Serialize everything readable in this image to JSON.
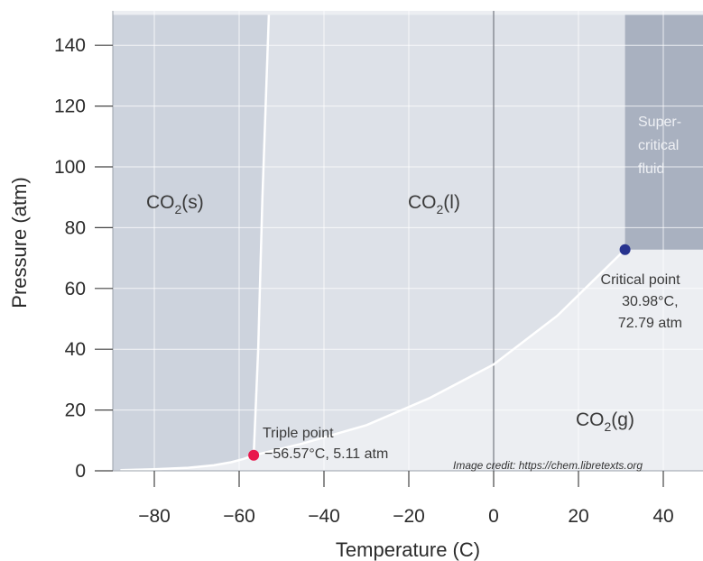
{
  "chart_data": {
    "type": "line",
    "title": "",
    "xlabel": "Temperature (C)",
    "ylabel": "Pressure (atm)",
    "xlim": [
      -88,
      49
    ],
    "ylim": [
      0,
      150
    ],
    "x_ticks": [
      -80,
      -60,
      -40,
      -20,
      0,
      20,
      40
    ],
    "x_tick_labels": [
      "−80",
      "−60",
      "−40",
      "−20",
      "0",
      "20",
      "40"
    ],
    "y_ticks": [
      0,
      20,
      40,
      60,
      80,
      100,
      120,
      140
    ],
    "y_tick_labels": [
      "0",
      "20",
      "40",
      "60",
      "80",
      "100",
      "120",
      "140"
    ],
    "grid": true,
    "reference_line_x": 0,
    "regions": {
      "solid": {
        "label": "CO",
        "sub": "2",
        "suffix": "(s)",
        "color": "#cdd3dd"
      },
      "liquid": {
        "label": "CO",
        "sub": "2",
        "suffix": "(l)",
        "color": "#dde1e8"
      },
      "gas": {
        "label": "CO",
        "sub": "2",
        "suffix": "(g)",
        "color": "#eceef2"
      },
      "supercritical": {
        "label_lines": [
          "Super-",
          "critical",
          "fluid"
        ],
        "color": "#a9b1c0"
      }
    },
    "curves": [
      {
        "name": "sublimation",
        "x": [
          -88,
          -80,
          -72,
          -66,
          -62,
          -59,
          -56.57
        ],
        "y": [
          0.2,
          0.5,
          1.0,
          1.8,
          2.8,
          3.9,
          5.11
        ]
      },
      {
        "name": "melting",
        "x": [
          -56.57,
          -55.5,
          -54.5,
          -53.0
        ],
        "y": [
          5.11,
          40,
          90,
          150
        ]
      },
      {
        "name": "vaporization",
        "x": [
          -56.57,
          -45,
          -30,
          -15,
          0,
          15,
          30.98
        ],
        "y": [
          5.11,
          9,
          15,
          24,
          35,
          51,
          72.79
        ]
      }
    ],
    "points": [
      {
        "name": "triple",
        "x": -56.57,
        "y": 5.11,
        "color": "#e8184c",
        "label_lines": [
          "Triple point",
          "−56.57°C, 5.11 atm"
        ]
      },
      {
        "name": "critical",
        "x": 30.98,
        "y": 72.79,
        "color": "#27338f",
        "label_lines": [
          "Critical point",
          "30.98°C,",
          "72.79 atm"
        ]
      }
    ],
    "credit": "Image credit: https://chem.libretexts.org"
  }
}
